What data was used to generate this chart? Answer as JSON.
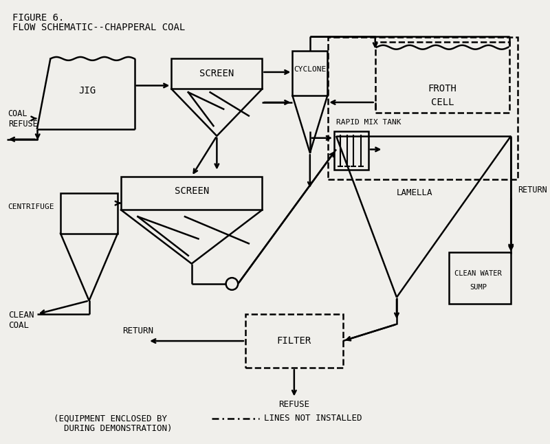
{
  "title_line1": "FIGURE 6.",
  "title_line2": "FLOW SCHEMATIC--CHAPPERAL COAL",
  "bg_color": "#f0efeb",
  "line_color": "black",
  "footnote1": "(EQUIPMENT ENCLOSED BY",
  "footnote_dash_label": "---,---",
  "footnote_mid": "LINES NOT INSTALLED",
  "footnote2": "  DURING DEMONSTRATION)"
}
